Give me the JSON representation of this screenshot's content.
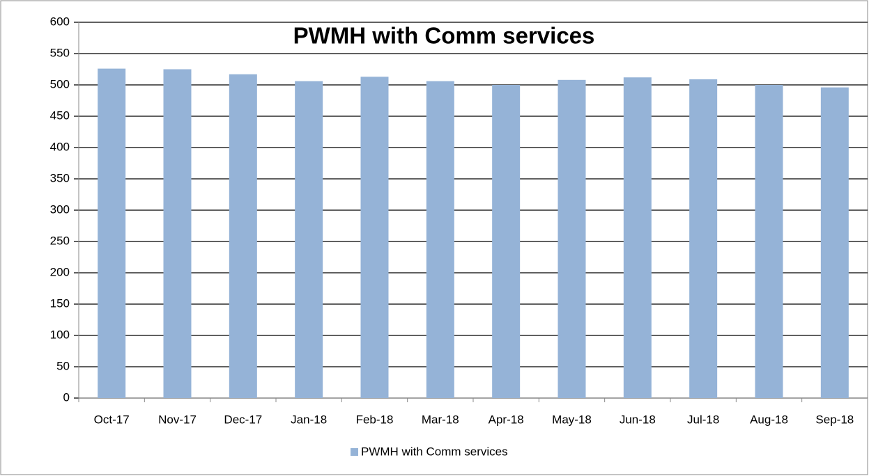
{
  "chart_data": {
    "type": "bar",
    "title": "PWMH with Comm services",
    "categories": [
      "Oct-17",
      "Nov-17",
      "Dec-17",
      "Jan-18",
      "Feb-18",
      "Mar-18",
      "Apr-18",
      "May-18",
      "Jun-18",
      "Jul-18",
      "Aug-18",
      "Sep-18"
    ],
    "series": [
      {
        "name": "PWMH with Comm services",
        "color": "#95b3d7",
        "values": [
          526,
          525,
          517,
          506,
          513,
          506,
          500,
          508,
          512,
          509,
          500,
          496
        ]
      }
    ],
    "ylim": [
      0,
      600
    ],
    "yticks": [
      0,
      50,
      100,
      150,
      200,
      250,
      300,
      350,
      400,
      450,
      500,
      550,
      600
    ],
    "grid": true,
    "legend": "bottom"
  }
}
